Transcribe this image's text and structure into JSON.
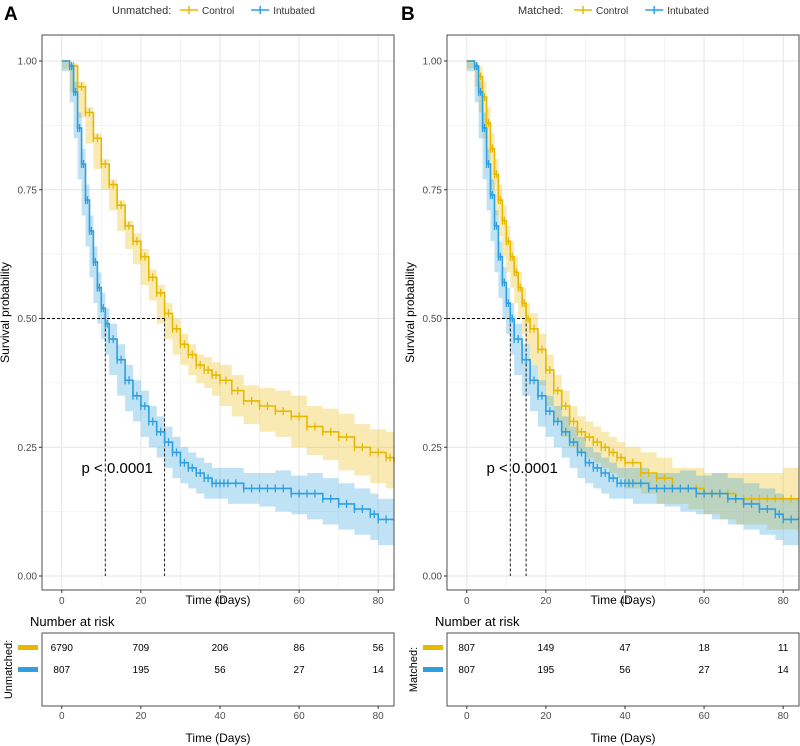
{
  "colors": {
    "control": "#E7B800",
    "intubated": "#2E9FDF",
    "grid": "#e6e6e6",
    "border": "#4d4d4d"
  },
  "chart_data": [
    {
      "type": "line",
      "panel": "A",
      "title": "",
      "legend_title": "Unmatched:",
      "legend_position": "top",
      "xlabel": "Time (Days)",
      "ylabel": "Survival probability",
      "xlim": [
        -5,
        84
      ],
      "ylim": [
        0,
        1
      ],
      "xticks": [
        0,
        20,
        40,
        60,
        80
      ],
      "yticks": [
        0.0,
        0.25,
        0.5,
        0.75,
        1.0
      ],
      "ytick_labels": [
        "0.00",
        "0.25",
        "0.50",
        "0.75",
        "1.00"
      ],
      "median_survival": {
        "Intubated": 11,
        "Control": 26
      },
      "annotation": {
        "text": "p < 0.0001",
        "x": 5,
        "y": 0.2
      },
      "series": [
        {
          "name": "Control",
          "color_key": "control",
          "x": [
            0,
            2,
            4,
            6,
            8,
            10,
            12,
            14,
            16,
            18,
            20,
            22,
            24,
            26,
            28,
            30,
            32,
            34,
            36,
            38,
            40,
            43,
            46,
            50,
            54,
            58,
            62,
            66,
            70,
            74,
            78,
            82,
            84
          ],
          "y": [
            1.0,
            0.99,
            0.95,
            0.9,
            0.85,
            0.8,
            0.76,
            0.72,
            0.68,
            0.65,
            0.62,
            0.58,
            0.55,
            0.51,
            0.48,
            0.45,
            0.43,
            0.41,
            0.4,
            0.39,
            0.38,
            0.36,
            0.34,
            0.33,
            0.32,
            0.31,
            0.29,
            0.28,
            0.27,
            0.25,
            0.24,
            0.23,
            0.22
          ],
          "ci_lower": [
            1.0,
            0.985,
            0.94,
            0.89,
            0.84,
            0.79,
            0.75,
            0.71,
            0.67,
            0.635,
            0.605,
            0.565,
            0.535,
            0.49,
            0.46,
            0.43,
            0.41,
            0.39,
            0.375,
            0.365,
            0.35,
            0.33,
            0.31,
            0.295,
            0.28,
            0.27,
            0.25,
            0.235,
            0.225,
            0.205,
            0.195,
            0.18,
            0.17
          ],
          "ci_upper": [
            1.0,
            0.995,
            0.96,
            0.91,
            0.86,
            0.81,
            0.77,
            0.73,
            0.69,
            0.665,
            0.635,
            0.595,
            0.565,
            0.53,
            0.5,
            0.47,
            0.45,
            0.43,
            0.425,
            0.415,
            0.41,
            0.39,
            0.37,
            0.365,
            0.36,
            0.35,
            0.33,
            0.325,
            0.315,
            0.295,
            0.285,
            0.28,
            0.27
          ]
        },
        {
          "name": "Intubated",
          "color_key": "intubated",
          "x": [
            0,
            2,
            3,
            4,
            5,
            6,
            7,
            8,
            9,
            10,
            11,
            12,
            14,
            16,
            18,
            20,
            22,
            24,
            26,
            28,
            30,
            32,
            34,
            36,
            38,
            40,
            42,
            46,
            50,
            54,
            58,
            62,
            66,
            70,
            74,
            78,
            80,
            84
          ],
          "y": [
            1.0,
            0.99,
            0.94,
            0.87,
            0.8,
            0.73,
            0.67,
            0.61,
            0.56,
            0.52,
            0.49,
            0.46,
            0.42,
            0.38,
            0.35,
            0.33,
            0.3,
            0.28,
            0.26,
            0.24,
            0.22,
            0.21,
            0.2,
            0.19,
            0.18,
            0.18,
            0.18,
            0.17,
            0.17,
            0.17,
            0.16,
            0.16,
            0.15,
            0.14,
            0.13,
            0.12,
            0.11,
            0.11
          ],
          "ci_lower": [
            1.0,
            0.98,
            0.92,
            0.85,
            0.77,
            0.7,
            0.64,
            0.58,
            0.53,
            0.49,
            0.46,
            0.43,
            0.39,
            0.35,
            0.32,
            0.3,
            0.27,
            0.25,
            0.23,
            0.21,
            0.19,
            0.18,
            0.17,
            0.16,
            0.15,
            0.15,
            0.15,
            0.14,
            0.14,
            0.135,
            0.125,
            0.12,
            0.11,
            0.1,
            0.09,
            0.08,
            0.07,
            0.06
          ],
          "ci_upper": [
            1.0,
            0.995,
            0.96,
            0.9,
            0.83,
            0.76,
            0.7,
            0.64,
            0.59,
            0.55,
            0.52,
            0.49,
            0.45,
            0.41,
            0.38,
            0.36,
            0.33,
            0.31,
            0.29,
            0.27,
            0.25,
            0.24,
            0.23,
            0.22,
            0.21,
            0.21,
            0.21,
            0.2,
            0.2,
            0.205,
            0.195,
            0.2,
            0.19,
            0.18,
            0.17,
            0.16,
            0.15,
            0.16
          ]
        }
      ],
      "risk_table": {
        "title": "Number at risk",
        "side_label": "Unmatched:",
        "xlabel": "Time (Days)",
        "times": [
          0,
          20,
          40,
          60,
          80
        ],
        "rows": [
          {
            "name": "Control",
            "color_key": "control",
            "values": [
              "6790",
              "709",
              "206",
              "86",
              "56"
            ]
          },
          {
            "name": "Intubated",
            "color_key": "intubated",
            "values": [
              "807",
              "195",
              "56",
              "27",
              "14"
            ]
          }
        ]
      }
    },
    {
      "type": "line",
      "panel": "B",
      "title": "",
      "legend_title": "Matched:",
      "legend_position": "top",
      "xlabel": "Time (Days)",
      "ylabel": "Survival probability",
      "xlim": [
        -5,
        84
      ],
      "ylim": [
        0,
        1
      ],
      "xticks": [
        0,
        20,
        40,
        60,
        80
      ],
      "yticks": [
        0.0,
        0.25,
        0.5,
        0.75,
        1.0
      ],
      "ytick_labels": [
        "0.00",
        "0.25",
        "0.50",
        "0.75",
        "1.00"
      ],
      "median_survival": {
        "Intubated": 11,
        "Control": 15
      },
      "annotation": {
        "text": "p < 0.0001",
        "x": 5,
        "y": 0.2
      },
      "series": [
        {
          "name": "Control",
          "color_key": "control",
          "x": [
            0,
            2,
            3,
            4,
            5,
            6,
            7,
            8,
            9,
            10,
            11,
            12,
            13,
            14,
            15,
            16,
            18,
            20,
            22,
            24,
            26,
            28,
            30,
            32,
            34,
            36,
            38,
            40,
            44,
            48,
            52,
            56,
            60,
            64,
            68,
            72,
            76,
            80,
            84
          ],
          "y": [
            1.0,
            0.99,
            0.97,
            0.93,
            0.88,
            0.83,
            0.78,
            0.73,
            0.69,
            0.65,
            0.62,
            0.59,
            0.56,
            0.53,
            0.5,
            0.48,
            0.44,
            0.4,
            0.36,
            0.33,
            0.3,
            0.28,
            0.27,
            0.26,
            0.25,
            0.24,
            0.23,
            0.22,
            0.2,
            0.19,
            0.17,
            0.17,
            0.16,
            0.16,
            0.15,
            0.15,
            0.15,
            0.15,
            0.15
          ],
          "ci_lower": [
            1.0,
            0.985,
            0.95,
            0.9,
            0.85,
            0.8,
            0.75,
            0.7,
            0.66,
            0.62,
            0.59,
            0.56,
            0.53,
            0.5,
            0.47,
            0.45,
            0.41,
            0.37,
            0.33,
            0.3,
            0.27,
            0.25,
            0.24,
            0.23,
            0.22,
            0.21,
            0.2,
            0.19,
            0.17,
            0.16,
            0.14,
            0.14,
            0.13,
            0.12,
            0.11,
            0.1,
            0.1,
            0.09,
            0.09
          ],
          "ci_upper": [
            1.0,
            0.995,
            0.99,
            0.96,
            0.91,
            0.86,
            0.81,
            0.76,
            0.72,
            0.68,
            0.65,
            0.62,
            0.59,
            0.56,
            0.53,
            0.51,
            0.47,
            0.43,
            0.39,
            0.36,
            0.33,
            0.31,
            0.3,
            0.29,
            0.28,
            0.27,
            0.26,
            0.25,
            0.24,
            0.23,
            0.21,
            0.21,
            0.2,
            0.2,
            0.2,
            0.2,
            0.2,
            0.21,
            0.21
          ]
        },
        {
          "name": "Intubated",
          "color_key": "intubated",
          "x": [
            0,
            2,
            3,
            4,
            5,
            6,
            7,
            8,
            9,
            10,
            11,
            12,
            14,
            16,
            18,
            20,
            22,
            24,
            26,
            28,
            30,
            32,
            34,
            36,
            38,
            40,
            42,
            46,
            50,
            54,
            58,
            62,
            66,
            70,
            74,
            78,
            80,
            84
          ],
          "y": [
            1.0,
            0.99,
            0.94,
            0.87,
            0.8,
            0.74,
            0.68,
            0.62,
            0.57,
            0.53,
            0.5,
            0.46,
            0.42,
            0.38,
            0.35,
            0.32,
            0.3,
            0.28,
            0.26,
            0.24,
            0.22,
            0.21,
            0.2,
            0.19,
            0.18,
            0.18,
            0.18,
            0.17,
            0.17,
            0.17,
            0.16,
            0.16,
            0.15,
            0.14,
            0.13,
            0.12,
            0.11,
            0.11
          ],
          "ci_lower": [
            1.0,
            0.98,
            0.92,
            0.85,
            0.77,
            0.71,
            0.65,
            0.59,
            0.54,
            0.5,
            0.47,
            0.43,
            0.39,
            0.35,
            0.32,
            0.29,
            0.27,
            0.25,
            0.23,
            0.21,
            0.19,
            0.18,
            0.17,
            0.16,
            0.15,
            0.15,
            0.15,
            0.14,
            0.14,
            0.135,
            0.125,
            0.12,
            0.11,
            0.1,
            0.09,
            0.08,
            0.07,
            0.06
          ],
          "ci_upper": [
            1.0,
            0.995,
            0.96,
            0.9,
            0.83,
            0.77,
            0.71,
            0.65,
            0.6,
            0.56,
            0.53,
            0.49,
            0.45,
            0.41,
            0.38,
            0.35,
            0.33,
            0.31,
            0.29,
            0.27,
            0.25,
            0.24,
            0.23,
            0.22,
            0.21,
            0.21,
            0.21,
            0.2,
            0.2,
            0.205,
            0.195,
            0.2,
            0.19,
            0.18,
            0.17,
            0.16,
            0.15,
            0.16
          ]
        }
      ],
      "risk_table": {
        "title": "Number at risk",
        "side_label": "Matched:",
        "xlabel": "Time (Days)",
        "times": [
          0,
          20,
          40,
          60,
          80
        ],
        "rows": [
          {
            "name": "Control",
            "color_key": "control",
            "values": [
              "807",
              "149",
              "47",
              "18",
              "11"
            ]
          },
          {
            "name": "Intubated",
            "color_key": "intubated",
            "values": [
              "807",
              "195",
              "56",
              "27",
              "14"
            ]
          }
        ]
      }
    }
  ]
}
